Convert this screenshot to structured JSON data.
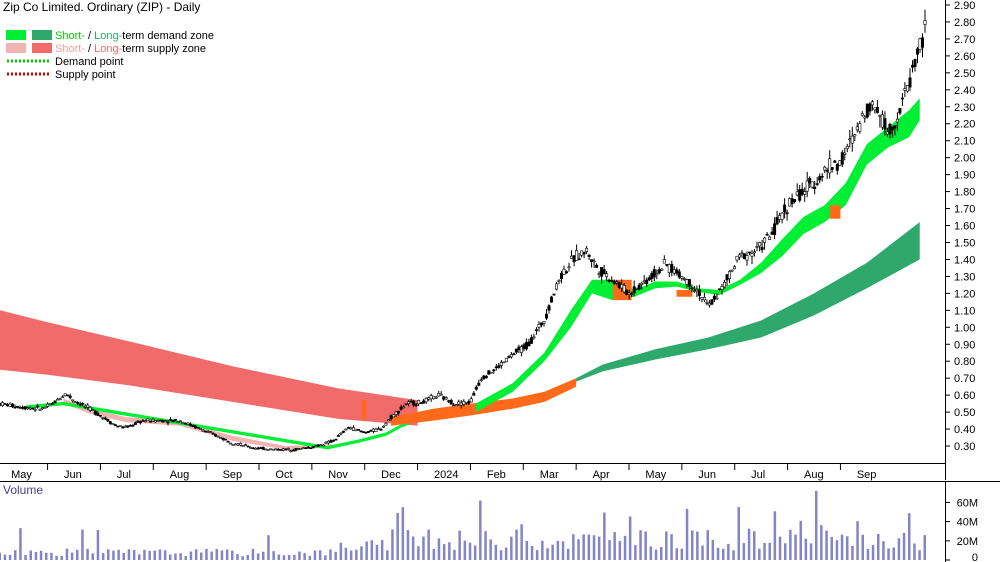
{
  "chart_data": {
    "type": "candlestick",
    "title": "Zip Co Limited. Ordinary (ZIP) - Daily",
    "ylim": [
      0.2,
      2.9
    ],
    "yticks": [
      "2.90",
      "2.80",
      "2.70",
      "2.60",
      "2.50",
      "2.40",
      "2.30",
      "2.20",
      "2.10",
      "2.00",
      "1.90",
      "1.80",
      "1.70",
      "1.60",
      "1.50",
      "1.40",
      "1.30",
      "1.20",
      "1.10",
      "1.00",
      "0.90",
      "0.80",
      "0.70",
      "0.60",
      "0.50",
      "0.40",
      "0.30"
    ],
    "x_month_labels": [
      {
        "label": "May",
        "month_index": 0
      },
      {
        "label": "Jun",
        "month_index": 1
      },
      {
        "label": "Jul",
        "month_index": 2
      },
      {
        "label": "Aug",
        "month_index": 3
      },
      {
        "label": "Sep",
        "month_index": 4
      },
      {
        "label": "Oct",
        "month_index": 5
      },
      {
        "label": "Nov",
        "month_index": 6
      },
      {
        "label": "Dec",
        "month_index": 7
      },
      {
        "label": "2024",
        "month_index": 8
      },
      {
        "label": "Feb",
        "month_index": 9
      },
      {
        "label": "Mar",
        "month_index": 10
      },
      {
        "label": "Apr",
        "month_index": 11
      },
      {
        "label": "May",
        "month_index": 12
      },
      {
        "label": "Jun",
        "month_index": 13
      },
      {
        "label": "Jul",
        "month_index": 14
      },
      {
        "label": "Aug",
        "month_index": 15
      },
      {
        "label": "Sep",
        "month_index": 16
      }
    ],
    "x_month_range": [
      -0.4,
      17.1
    ],
    "price_path": [
      [
        -0.4,
        0.55
      ],
      [
        0.0,
        0.53
      ],
      [
        0.4,
        0.52
      ],
      [
        0.6,
        0.55
      ],
      [
        0.85,
        0.61
      ],
      [
        1.0,
        0.57
      ],
      [
        1.3,
        0.52
      ],
      [
        1.6,
        0.46
      ],
      [
        1.8,
        0.42
      ],
      [
        2.0,
        0.41
      ],
      [
        2.3,
        0.45
      ],
      [
        2.6,
        0.45
      ],
      [
        3.0,
        0.45
      ],
      [
        3.4,
        0.4
      ],
      [
        3.7,
        0.36
      ],
      [
        4.0,
        0.32
      ],
      [
        4.4,
        0.29
      ],
      [
        4.8,
        0.28
      ],
      [
        5.2,
        0.28
      ],
      [
        5.6,
        0.3
      ],
      [
        5.9,
        0.33
      ],
      [
        6.2,
        0.41
      ],
      [
        6.5,
        0.38
      ],
      [
        6.8,
        0.4
      ],
      [
        7.0,
        0.47
      ],
      [
        7.3,
        0.55
      ],
      [
        7.6,
        0.56
      ],
      [
        7.9,
        0.6
      ],
      [
        8.2,
        0.55
      ],
      [
        8.5,
        0.56
      ],
      [
        8.7,
        0.7
      ],
      [
        9.0,
        0.76
      ],
      [
        9.3,
        0.84
      ],
      [
        9.6,
        0.9
      ],
      [
        9.9,
        1.05
      ],
      [
        10.2,
        1.3
      ],
      [
        10.5,
        1.42
      ],
      [
        10.7,
        1.45
      ],
      [
        10.9,
        1.35
      ],
      [
        11.2,
        1.28
      ],
      [
        11.5,
        1.2
      ],
      [
        11.8,
        1.27
      ],
      [
        12.2,
        1.37
      ],
      [
        12.5,
        1.3
      ],
      [
        12.8,
        1.22
      ],
      [
        13.0,
        1.12
      ],
      [
        13.3,
        1.25
      ],
      [
        13.6,
        1.42
      ],
      [
        13.9,
        1.45
      ],
      [
        14.2,
        1.55
      ],
      [
        14.5,
        1.72
      ],
      [
        14.8,
        1.8
      ],
      [
        15.0,
        1.85
      ],
      [
        15.3,
        1.95
      ],
      [
        15.5,
        1.97
      ],
      [
        15.8,
        2.15
      ],
      [
        16.0,
        2.3
      ],
      [
        16.2,
        2.3
      ],
      [
        16.4,
        2.15
      ],
      [
        16.6,
        2.25
      ],
      [
        16.8,
        2.45
      ],
      [
        17.0,
        2.65
      ],
      [
        17.1,
        2.75
      ]
    ],
    "zones": [
      {
        "name": "Long-term supply zone",
        "color": "#f26b6b",
        "points": [
          [
            -0.4,
            1.1,
            0.75
          ],
          [
            0.5,
            1.03,
            0.72
          ],
          [
            2.0,
            0.92,
            0.66
          ],
          [
            4.0,
            0.77,
            0.56
          ],
          [
            6.0,
            0.64,
            0.46
          ],
          [
            7.5,
            0.57,
            0.42
          ]
        ]
      },
      {
        "name": "Short-term supply zone",
        "color": "#f4b3b3",
        "points": [
          [
            0.8,
            0.58,
            0.55
          ],
          [
            1.3,
            0.52,
            0.49
          ],
          [
            2.0,
            0.47,
            0.44
          ],
          [
            3.0,
            0.45,
            0.42
          ],
          [
            4.0,
            0.36,
            0.33
          ],
          [
            5.0,
            0.3,
            0.28
          ],
          [
            5.9,
            0.31,
            0.29
          ]
        ]
      },
      {
        "name": "Short-term demand zone (initial)",
        "color": "#00ee33",
        "points": [
          [
            0.1,
            0.54,
            0.52
          ],
          [
            0.8,
            0.56,
            0.54
          ],
          [
            5.8,
            0.3,
            0.28
          ],
          [
            6.4,
            0.34,
            0.32
          ],
          [
            6.9,
            0.38,
            0.36
          ],
          [
            7.2,
            0.43,
            0.41
          ],
          [
            7.6,
            0.49,
            0.46
          ],
          [
            7.9,
            0.52,
            0.48
          ],
          [
            8.3,
            0.52,
            0.48
          ]
        ]
      },
      {
        "name": "Long-term demand zone (overlap orange)",
        "color": "#ff6a1a",
        "points": [
          [
            7.0,
            0.47,
            0.42
          ],
          [
            7.8,
            0.52,
            0.45
          ],
          [
            8.5,
            0.55,
            0.48
          ],
          [
            9.3,
            0.58,
            0.52
          ],
          [
            9.9,
            0.62,
            0.56
          ],
          [
            10.5,
            0.7,
            0.65
          ]
        ]
      },
      {
        "name": "Long-term demand zone",
        "color": "#2ea86b",
        "points": [
          [
            10.5,
            0.7,
            0.68
          ],
          [
            11.0,
            0.78,
            0.74
          ],
          [
            12.0,
            0.87,
            0.81
          ],
          [
            13.0,
            0.94,
            0.87
          ],
          [
            14.0,
            1.04,
            0.94
          ],
          [
            15.0,
            1.2,
            1.07
          ],
          [
            16.0,
            1.38,
            1.23
          ],
          [
            17.0,
            1.62,
            1.4
          ]
        ]
      },
      {
        "name": "Short-term demand zone",
        "color": "#00ee33",
        "points": [
          [
            8.6,
            0.55,
            0.5
          ],
          [
            9.3,
            0.67,
            0.62
          ],
          [
            9.9,
            0.85,
            0.8
          ],
          [
            10.4,
            1.1,
            1.0
          ],
          [
            10.8,
            1.28,
            1.2
          ],
          [
            11.2,
            1.28,
            1.16
          ],
          [
            11.6,
            1.22,
            1.18
          ],
          [
            12.0,
            1.27,
            1.23
          ],
          [
            12.4,
            1.27,
            1.24
          ],
          [
            12.8,
            1.23,
            1.21
          ],
          [
            13.2,
            1.22,
            1.19
          ],
          [
            13.6,
            1.28,
            1.25
          ],
          [
            14.0,
            1.38,
            1.32
          ],
          [
            14.4,
            1.52,
            1.42
          ],
          [
            14.8,
            1.65,
            1.55
          ],
          [
            15.2,
            1.72,
            1.62
          ],
          [
            15.6,
            1.85,
            1.72
          ],
          [
            16.0,
            2.08,
            1.96
          ],
          [
            16.4,
            2.18,
            2.06
          ],
          [
            16.8,
            2.28,
            2.12
          ],
          [
            17.0,
            2.35,
            2.22
          ]
        ]
      },
      {
        "name": "Supply overlap patches",
        "color": "#ff6a1a",
        "patches": [
          [
            11.2,
            11.55,
            1.28,
            1.16
          ],
          [
            12.4,
            12.7,
            1.22,
            1.18
          ],
          [
            15.3,
            15.5,
            1.72,
            1.64
          ]
        ]
      }
    ],
    "legend": [
      {
        "swatch_colors": [
          "#00ee33",
          "#2ea86b"
        ],
        "parts": [
          {
            "text": "Short-",
            "color": "#00cc00"
          },
          {
            "text": " / ",
            "color": "#000000"
          },
          {
            "text": "Long-",
            "color": "#2ea86b"
          },
          {
            "text": "term demand zone",
            "color": "#000000"
          }
        ]
      },
      {
        "swatch_colors": [
          "#f4b3b3",
          "#f26b6b"
        ],
        "parts": [
          {
            "text": "Short-",
            "color": "#f4a0a0"
          },
          {
            "text": " / ",
            "color": "#000000"
          },
          {
            "text": "Long-",
            "color": "#f26b6b"
          },
          {
            "text": "term supply zone",
            "color": "#000000"
          }
        ]
      },
      {
        "dotted_color": "#00cc00",
        "text": "Demand point"
      },
      {
        "dotted_color": "#cc0000",
        "text": "Supply point"
      }
    ],
    "volume": {
      "title": "Volume",
      "yticks": [
        {
          "label": "60M",
          "value": 60
        },
        {
          "label": "40M",
          "value": 40
        },
        {
          "label": "20M",
          "value": 20
        },
        {
          "label": "0",
          "value": 0
        }
      ],
      "ylim": [
        0,
        75
      ],
      "bar_color": "#8484c8"
    }
  }
}
